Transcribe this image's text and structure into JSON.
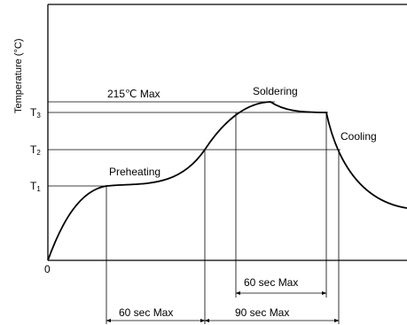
{
  "chart_data": {
    "type": "line",
    "title": "",
    "xlabel": "",
    "ylabel": "Temperature (°C)",
    "origin_label": "0",
    "y_ticks": [
      {
        "letter": "T",
        "sub": "3"
      },
      {
        "letter": "T",
        "sub": "2"
      },
      {
        "letter": "T",
        "sub": "1"
      }
    ],
    "series": [
      {
        "name": "",
        "points": [
          {
            "t": 0,
            "temp": 0
          },
          {
            "t": 3,
            "temp": 0.5
          },
          {
            "t": 6,
            "temp": 0.75
          },
          {
            "t": 9,
            "temp": 0.92
          },
          {
            "t": 12,
            "temp": 1.0
          },
          {
            "t": 15,
            "temp": 1.0
          },
          {
            "t": 18,
            "temp": 1.1
          },
          {
            "t": 21,
            "temp": 1.55
          },
          {
            "t": 24,
            "temp": 2.0
          },
          {
            "t": 27,
            "temp": 2.6
          },
          {
            "t": 30,
            "temp": 2.85
          },
          {
            "t": 33,
            "temp": 2.72
          },
          {
            "t": 36,
            "temp": 2.72
          },
          {
            "t": 39,
            "temp": 2.05
          },
          {
            "t": 42,
            "temp": 1.55
          },
          {
            "t": 45,
            "temp": 1.25
          }
        ]
      }
    ],
    "annotations": {
      "max_temp": "215℃  Max",
      "soldering": "Soldering",
      "preheating": "Preheating",
      "cooling": "Cooling"
    },
    "dimensions": [
      {
        "label": "60 sec   Max",
        "from_t": 26.5,
        "to_t": 36.5
      },
      {
        "label": "60 sec   Max",
        "from_t": 6.8,
        "to_t": 18
      },
      {
        "label": "90 sec   Max",
        "from_t": 18,
        "to_t": 32.5
      }
    ]
  }
}
